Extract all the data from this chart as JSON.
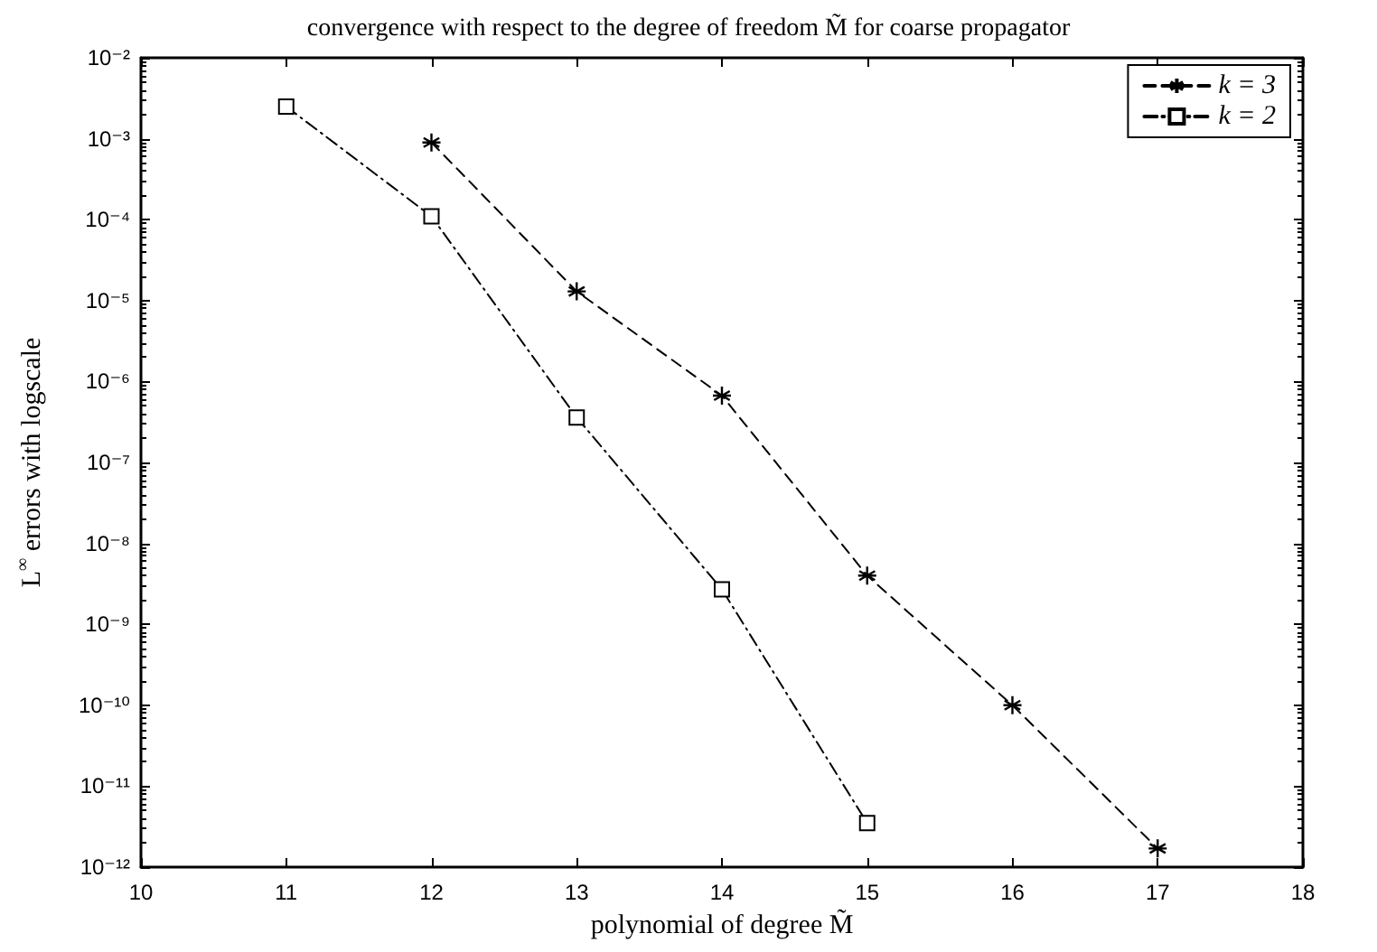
{
  "chart_data": {
    "type": "line",
    "title": "convergence with respect to the degree of freedom M̃ for coarse propagator",
    "xlabel": "polynomial of degree M̃",
    "ylabel": "L$^{∞}$ errors with logscale",
    "log": "y",
    "xlim": [
      10,
      18
    ],
    "xticks": [
      10,
      11,
      12,
      13,
      14,
      15,
      16,
      17,
      18
    ],
    "ylim": [
      1e-12,
      0.01
    ],
    "yticks": [
      {
        "value": 1e-12,
        "label": "10⁻¹²"
      },
      {
        "value": 1e-11,
        "label": "10⁻¹¹"
      },
      {
        "value": 1e-10,
        "label": "10⁻¹⁰"
      },
      {
        "value": 1e-09,
        "label": "10⁻⁹"
      },
      {
        "value": 1e-08,
        "label": "10⁻⁸"
      },
      {
        "value": 1e-07,
        "label": "10⁻⁷"
      },
      {
        "value": 1e-06,
        "label": "10⁻⁶"
      },
      {
        "value": 1e-05,
        "label": "10⁻⁵"
      },
      {
        "value": 0.0001,
        "label": "10⁻⁴"
      },
      {
        "value": 0.001,
        "label": "10⁻³"
      },
      {
        "value": 0.01,
        "label": "10⁻²"
      }
    ],
    "grid": false,
    "legend": "top right",
    "series": [
      {
        "name": "k = 3",
        "color": "#000000",
        "marker": "cross",
        "line_style": "dashed",
        "x": [
          12,
          13,
          14,
          15,
          16,
          17
        ],
        "values": [
          0.0009,
          1.3e-05,
          6.7e-07,
          4e-09,
          1e-10,
          1.7e-12
        ]
      },
      {
        "name": "k = 2",
        "color": "#000000",
        "marker": "square",
        "line_style": "dashdot",
        "x": [
          11,
          12,
          13,
          14,
          15
        ],
        "values": [
          0.0025,
          0.00011,
          3.6e-07,
          2.7e-09,
          3.5e-12
        ]
      }
    ]
  }
}
